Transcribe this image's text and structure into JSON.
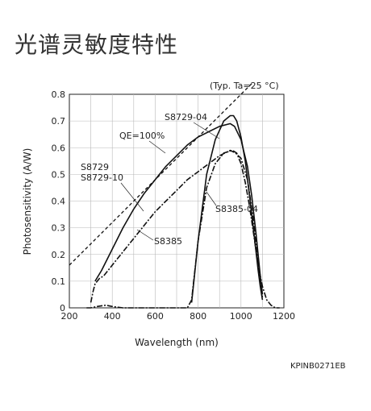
{
  "title": "光谱灵敏度特性",
  "chart_data": {
    "type": "line",
    "note": "(Typ. Ta=25 °C)",
    "xlabel": "Wavelength (nm)",
    "ylabel": "Photosensitivity (A/W)",
    "xlim": [
      200,
      1200
    ],
    "ylim": [
      0,
      0.8
    ],
    "xticks": [
      200,
      400,
      600,
      800,
      1000,
      1200
    ],
    "yticks": [
      0,
      0.1,
      0.2,
      0.3,
      0.4,
      0.5,
      0.6,
      0.7,
      0.8
    ],
    "grid": true,
    "figure_code": "KPINB0271EB",
    "series": [
      {
        "name": "QE=100%",
        "style": "dashed",
        "x": [
          200,
          1050
        ],
        "y": [
          0.16,
          0.84
        ]
      },
      {
        "name": "S8729-04",
        "style": "solid",
        "x": [
          770,
          800,
          840,
          880,
          920,
          950,
          965,
          980,
          1000,
          1020,
          1040,
          1060,
          1080,
          1090,
          1100
        ],
        "y": [
          0.02,
          0.25,
          0.5,
          0.63,
          0.7,
          0.72,
          0.72,
          0.7,
          0.64,
          0.55,
          0.42,
          0.28,
          0.14,
          0.08,
          0.03
        ]
      },
      {
        "name": "S8729",
        "style": "solid",
        "x": [
          320,
          350,
          400,
          450,
          500,
          550,
          600,
          650,
          700,
          750,
          800,
          850,
          900,
          950,
          970,
          1000,
          1030,
          1050,
          1070,
          1090,
          1100
        ],
        "y": [
          0.1,
          0.14,
          0.22,
          0.3,
          0.37,
          0.43,
          0.48,
          0.53,
          0.57,
          0.61,
          0.64,
          0.66,
          0.68,
          0.69,
          0.68,
          0.63,
          0.53,
          0.42,
          0.28,
          0.12,
          0.05
        ]
      },
      {
        "name": "S8385",
        "style": "dashdot",
        "x": [
          300,
          310,
          320,
          340,
          360,
          400,
          450,
          500,
          550,
          600,
          650,
          700,
          750,
          800,
          850,
          900,
          950,
          975,
          1000,
          1030,
          1060,
          1080,
          1100
        ],
        "y": [
          0.02,
          0.06,
          0.09,
          0.11,
          0.12,
          0.16,
          0.21,
          0.26,
          0.31,
          0.36,
          0.4,
          0.44,
          0.48,
          0.51,
          0.54,
          0.57,
          0.59,
          0.58,
          0.56,
          0.48,
          0.32,
          0.16,
          0.04
        ]
      },
      {
        "name": "S8385-04",
        "style": "dashdot",
        "x": [
          280,
          300,
          330,
          370,
          400,
          450,
          500,
          600,
          700,
          750,
          770,
          800,
          840,
          880,
          920,
          960,
          980,
          1000,
          1020,
          1040,
          1060,
          1080,
          1100,
          1120,
          1140,
          1160,
          1180
        ],
        "y": [
          0.0,
          0.0,
          0.005,
          0.01,
          0.005,
          0.0,
          0.0,
          0.0,
          0.0,
          0.0,
          0.03,
          0.25,
          0.45,
          0.54,
          0.58,
          0.59,
          0.58,
          0.54,
          0.47,
          0.38,
          0.27,
          0.16,
          0.08,
          0.03,
          0.01,
          0.0,
          0.0
        ]
      }
    ],
    "labels": [
      "S8729-04",
      "QE=100%",
      "S8729",
      "S8729-10",
      "S8385",
      "S8385-04"
    ]
  }
}
